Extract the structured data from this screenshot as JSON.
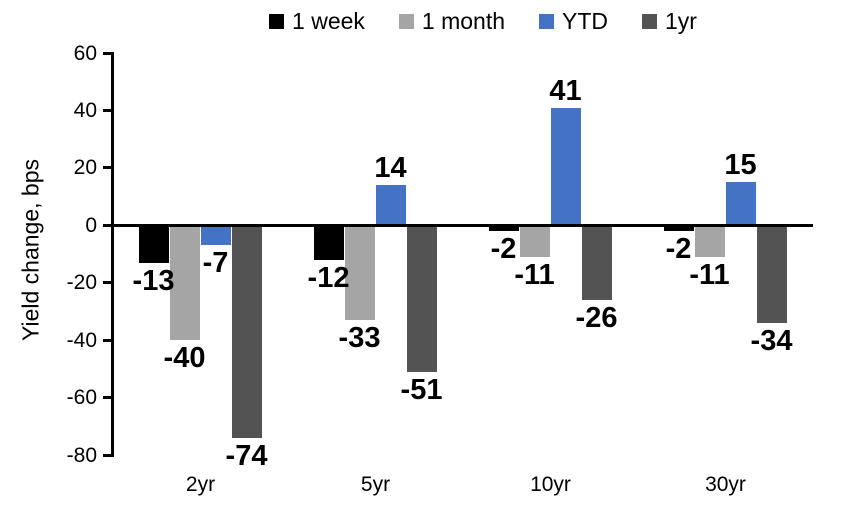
{
  "chart_data": {
    "type": "bar",
    "title": "",
    "xlabel": "",
    "ylabel": "Yield change, bps",
    "categories": [
      "2yr",
      "5yr",
      "10yr",
      "30yr"
    ],
    "series": [
      {
        "name": "1 week",
        "color": "#000000",
        "values": [
          -13,
          -12,
          -2,
          -2
        ]
      },
      {
        "name": "1 month",
        "color": "#A5A5A5",
        "values": [
          -40,
          -33,
          -11,
          -11
        ]
      },
      {
        "name": "YTD",
        "color": "#4472C4",
        "values": [
          -7,
          14,
          41,
          15
        ]
      },
      {
        "name": "1yr",
        "color": "#535353",
        "values": [
          -74,
          -51,
          -26,
          -34
        ]
      }
    ],
    "y_ticks": [
      60,
      40,
      20,
      0,
      -20,
      -40,
      -60,
      -80
    ],
    "ylim": [
      -80,
      60
    ],
    "grid": false,
    "data_labels": true,
    "legend_position": "top",
    "axis_color": "#000000"
  }
}
